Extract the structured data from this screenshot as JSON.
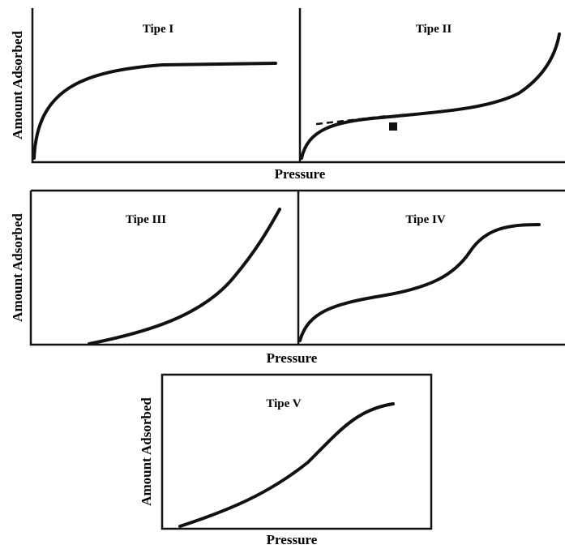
{
  "panels": [
    {
      "title": "Tipe I"
    },
    {
      "title": "Tipe II"
    },
    {
      "title": "Tipe III"
    },
    {
      "title": "Tipe IV"
    },
    {
      "title": "Tipe V"
    }
  ],
  "rows": [
    {
      "y_label": "Amount Adsorbed",
      "x_label": "Pressure"
    },
    {
      "y_label": "Amount Adsorbed",
      "x_label": "Pressure"
    },
    {
      "y_label": "Amount Adsorbed",
      "x_label": "Pressure"
    }
  ]
}
